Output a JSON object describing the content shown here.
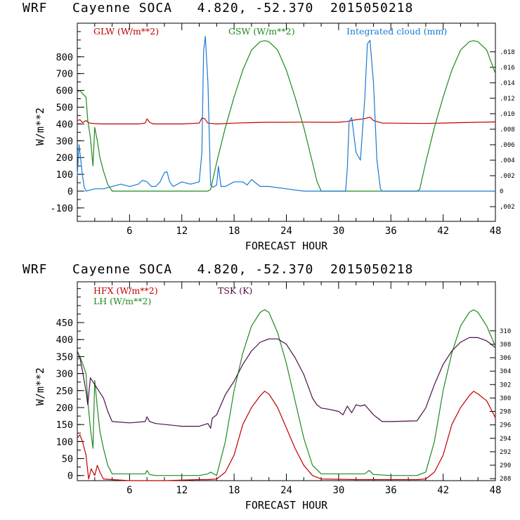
{
  "panels": [
    {
      "title": "WRF   Cayenne SOCA   4.820, -52.370  2015050218",
      "chart_data": {
        "type": "line",
        "xlabel": "FORECAST HOUR",
        "ylabel": "W/m**2",
        "xlim": [
          0,
          48
        ],
        "ylim": [
          -180,
          1000
        ],
        "xticks": [
          6,
          12,
          18,
          24,
          30,
          36,
          42,
          48
        ],
        "xtick_labels": [
          "6",
          "12",
          "18",
          "24",
          "30",
          "36",
          "42",
          "48"
        ],
        "yticks": [
          -100,
          0,
          100,
          200,
          300,
          400,
          500,
          600,
          700,
          800
        ],
        "ytick_labels": [
          "-100",
          "0",
          "100",
          "200",
          "300",
          "400",
          "500",
          "600",
          "700",
          "800"
        ],
        "y2lim": [
          -0.0039,
          0.0217
        ],
        "y2ticks": [
          -0.002,
          0,
          0.002,
          0.004,
          0.006,
          0.008,
          0.01,
          0.012,
          0.014,
          0.016,
          0.018
        ],
        "y2tick_labels": [
          ",002",
          "0",
          ".002",
          ".004",
          ".006",
          ".008",
          ".010",
          ".012",
          ".014",
          ".016",
          ".018"
        ],
        "series": [
          {
            "name": "GLW (W/m**2)",
            "color": "#c00000",
            "axis": "left",
            "x": [
              0,
              0.3,
              0.6,
              1,
              1.4,
              2,
              3,
              4,
              5,
              6,
              7,
              7.8,
              8,
              8.3,
              8.6,
              9,
              10,
              12,
              14,
              14.3,
              14.6,
              15,
              16,
              18,
              20,
              22,
              24,
              26,
              28,
              30,
              31,
              32,
              33,
              33.6,
              34,
              35,
              36,
              40,
              44,
              48
            ],
            "values": [
              420,
              425,
              408,
              420,
              405,
              402,
              400,
              400,
              400,
              400,
              400,
              405,
              430,
              410,
              402,
              400,
              400,
              400,
              405,
              435,
              432,
              405,
              400,
              405,
              408,
              410,
              410,
              411,
              410,
              410,
              415,
              425,
              432,
              440,
              420,
              405,
              405,
              403,
              408,
              412
            ]
          },
          {
            "name": "GSW (W/m**2)",
            "color": "#1f8a1f",
            "axis": "left",
            "x": [
              0,
              0.3,
              0.6,
              1,
              1.2,
              1.5,
              1.8,
              2,
              2.3,
              2.6,
              3,
              3.5,
              4,
              5,
              8,
              11,
              14,
              15,
              15.3,
              16,
              17,
              18,
              19,
              20,
              21,
              21.5,
              22,
              23,
              24,
              25,
              26,
              27,
              27.5,
              28,
              32,
              36,
              39,
              39.3,
              40,
              41,
              42,
              43,
              44,
              45,
              45.5,
              46,
              47,
              48
            ],
            "values": [
              590,
              600,
              580,
              560,
              420,
              320,
              150,
              380,
              300,
              200,
              120,
              40,
              0,
              0,
              0,
              0,
              0,
              0,
              10,
              170,
              380,
              560,
              720,
              840,
              890,
              896,
              890,
              840,
              720,
              560,
              380,
              170,
              60,
              0,
              0,
              0,
              0,
              10,
              170,
              380,
              560,
              720,
              840,
              890,
              896,
              890,
              840,
              700
            ]
          },
          {
            "name": "Integrated cloud (mm)",
            "color": "#1a7ad4",
            "axis": "right",
            "x": [
              0,
              0.2,
              0.4,
              0.6,
              0.8,
              1,
              2,
              3,
              4,
              5,
              6,
              7,
              7.5,
              8,
              8.5,
              9,
              9.5,
              10,
              10.3,
              10.6,
              11,
              12,
              13,
              14,
              14.3,
              14.5,
              14.7,
              15,
              15.3,
              15.6,
              16,
              16.2,
              16.5,
              17,
              18,
              19,
              19.5,
              20,
              21,
              22,
              24,
              26,
              28,
              30,
              30.8,
              31,
              31.2,
              31.5,
              32,
              32.5,
              33,
              33.3,
              33.6,
              34,
              34.4,
              34.8,
              35,
              36,
              40,
              44,
              48
            ],
            "values": [
              0.002,
              0.006,
              0.004,
              0.002,
              0.0005,
              0,
              0.0003,
              0.0003,
              0.0006,
              0.0009,
              0.0006,
              0.0009,
              0.0014,
              0.0012,
              0.0006,
              0.0006,
              0.0012,
              0.0024,
              0.0025,
              0.0012,
              0.0006,
              0.0012,
              0.0009,
              0.0012,
              0.005,
              0.018,
              0.02,
              0.014,
              0.0008,
              0.0005,
              0.0008,
              0.0032,
              0.0006,
              0.0006,
              0.0012,
              0.0012,
              0.0008,
              0.0015,
              0.0006,
              0.0006,
              0.0003,
              0,
              0,
              0,
              0,
              0.003,
              0.009,
              0.0095,
              0.005,
              0.004,
              0.012,
              0.019,
              0.0195,
              0.014,
              0.004,
              0.0003,
              0,
              0,
              0,
              0,
              0
            ]
          }
        ]
      }
    },
    {
      "title": "WRF   Cayenne SOCA   4.820, -52.370  2015050218",
      "chart_data": {
        "type": "line",
        "xlabel": "FORECAST HOUR",
        "ylabel": "W/m**2",
        "xlim": [
          0,
          48
        ],
        "ylim": [
          -15,
          570
        ],
        "xticks": [
          6,
          12,
          18,
          24,
          30,
          36,
          42,
          48
        ],
        "xtick_labels": [
          "6",
          "12",
          "18",
          "24",
          "30",
          "36",
          "42",
          "48"
        ],
        "yticks": [
          0,
          50,
          100,
          150,
          200,
          250,
          300,
          350,
          400,
          450
        ],
        "ytick_labels": [
          "0",
          "50",
          "100",
          "150",
          "200",
          "250",
          "300",
          "350",
          "400",
          "450"
        ],
        "y2lim": [
          287.7,
          317.3
        ],
        "y2ticks": [
          288,
          290,
          292,
          294,
          296,
          298,
          300,
          302,
          304,
          306,
          308,
          310
        ],
        "y2tick_labels": [
          "288",
          "290",
          "292",
          "294",
          "296",
          "298",
          "300",
          "302",
          "304",
          "306",
          "308",
          "310"
        ],
        "series": [
          {
            "name": "HFX (W/m**2)",
            "color": "#c00000",
            "axis": "left",
            "x": [
              0,
              0.3,
              0.6,
              1,
              1.3,
              1.6,
              2,
              2.3,
              2.6,
              3,
              4,
              6,
              10,
              14,
              15,
              16,
              17,
              18,
              19,
              20,
              21,
              21.5,
              22,
              23,
              24,
              25,
              26,
              27,
              28,
              32,
              36,
              39,
              40,
              41,
              42,
              43,
              44,
              45,
              45.5,
              46,
              47,
              48
            ],
            "values": [
              110,
              120,
              100,
              60,
              -10,
              20,
              0,
              30,
              10,
              -10,
              -12,
              -15,
              -15,
              -12,
              -12,
              -10,
              10,
              60,
              150,
              200,
              235,
              248,
              240,
              200,
              140,
              80,
              30,
              0,
              -10,
              -12,
              -12,
              -12,
              -10,
              10,
              60,
              150,
              200,
              235,
              248,
              240,
              220,
              170
            ]
          },
          {
            "name": "LH (W/m**2)",
            "color": "#1f8a1f",
            "axis": "left",
            "x": [
              0,
              0.3,
              0.6,
              1,
              1.2,
              1.5,
              1.8,
              2,
              2.3,
              2.6,
              3,
              3.5,
              4,
              6,
              7.8,
              8,
              8.3,
              9,
              12,
              14,
              15,
              15.3,
              16,
              17,
              18,
              19,
              20,
              21,
              21.5,
              22,
              23,
              24,
              25,
              26,
              27,
              28,
              30,
              33,
              33.5,
              34,
              36,
              39,
              40,
              41,
              42,
              43,
              44,
              45,
              45.5,
              46,
              47,
              48
            ],
            "values": [
              340,
              350,
              330,
              300,
              220,
              140,
              80,
              280,
              200,
              130,
              80,
              30,
              5,
              5,
              5,
              15,
              3,
              0,
              0,
              0,
              5,
              10,
              0,
              100,
              250,
              360,
              440,
              480,
              488,
              480,
              420,
              330,
              220,
              110,
              30,
              5,
              5,
              5,
              15,
              3,
              0,
              0,
              10,
              100,
              250,
              360,
              440,
              480,
              488,
              480,
              440,
              380
            ]
          },
          {
            "name": "TSK (K)",
            "color": "#4a0f4a",
            "axis": "right",
            "x": [
              0,
              0.3,
              0.6,
              1,
              1.2,
              1.5,
              2,
              2.5,
              3,
              3.5,
              4,
              6,
              7.8,
              8,
              8.3,
              9,
              12,
              14,
              15,
              15.3,
              15.5,
              16,
              17,
              18,
              19,
              20,
              21,
              22,
              23,
              24,
              25,
              26,
              27,
              27.5,
              28,
              29,
              30,
              30.5,
              31,
              31.5,
              32,
              32.5,
              33,
              34,
              35,
              36,
              39,
              40,
              41,
              42,
              43,
              44,
              45,
              46,
              47,
              48
            ],
            "values": [
              307,
              306,
              304,
              301,
              299,
              303,
              302,
              301,
              300,
              298,
              296.5,
              296.3,
              296.5,
              297.2,
              296.5,
              296.2,
              295.8,
              295.8,
              296.2,
              295.5,
              297,
              297.5,
              300.5,
              302.5,
              305,
              307,
              308.3,
              308.8,
              308.8,
              308,
              306,
              303.5,
              300,
              299,
              298.5,
              298.3,
              298,
              297.5,
              298.8,
              297.8,
              299,
              298.8,
              299,
              297.5,
              296.5,
              296.5,
              296.6,
              298.5,
              302,
              305,
              307,
              308.3,
              309,
              309,
              308.5,
              307.5
            ]
          }
        ]
      }
    }
  ]
}
